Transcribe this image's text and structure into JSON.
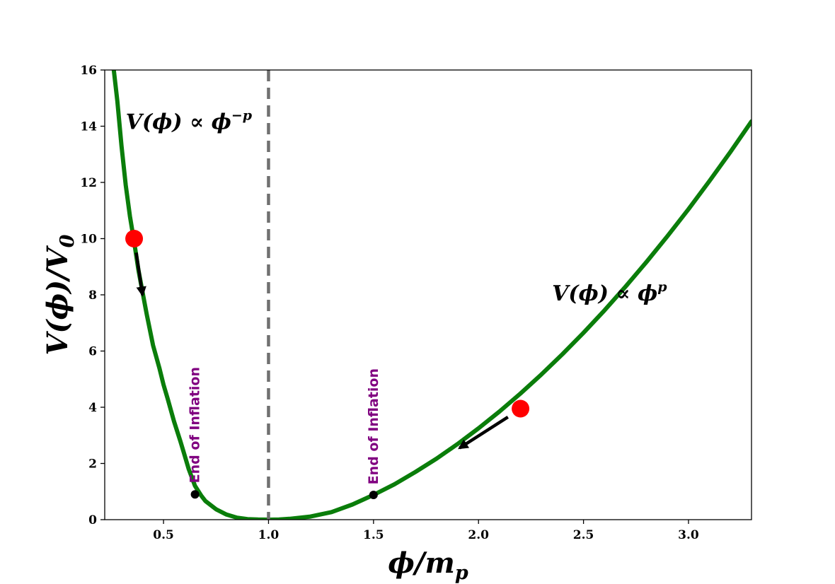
{
  "chart_data": {
    "type": "line",
    "title": "",
    "xlabel": "ϕ/m",
    "xlabel_sub": "p",
    "ylabel": "V(ϕ)/V",
    "ylabel_sub": "0",
    "xlim": [
      0.22,
      3.3
    ],
    "ylim": [
      0,
      16
    ],
    "x_ticks": [
      {
        "value": 0.5,
        "label": "0.5"
      },
      {
        "value": 1.0,
        "label": "1.0"
      },
      {
        "value": 1.5,
        "label": "1.5"
      },
      {
        "value": 2.0,
        "label": "2.0"
      },
      {
        "value": 2.5,
        "label": "2.5"
      },
      {
        "value": 3.0,
        "label": "3.0"
      }
    ],
    "y_ticks": [
      {
        "value": 0,
        "label": "0"
      },
      {
        "value": 2,
        "label": "2"
      },
      {
        "value": 4,
        "label": "4"
      },
      {
        "value": 6,
        "label": "6"
      },
      {
        "value": 8,
        "label": "8"
      },
      {
        "value": 10,
        "label": "10"
      },
      {
        "value": 12,
        "label": "12"
      },
      {
        "value": 14,
        "label": "14"
      },
      {
        "value": 16,
        "label": "16"
      }
    ],
    "grid": false,
    "curve": {
      "color": "#0a7d0a",
      "points": [
        [
          0.26,
          16.2
        ],
        [
          0.28,
          14.9
        ],
        [
          0.3,
          13.3
        ],
        [
          0.32,
          11.9
        ],
        [
          0.34,
          10.8
        ],
        [
          0.36,
          9.9
        ],
        [
          0.38,
          8.9
        ],
        [
          0.4,
          8.1
        ],
        [
          0.42,
          7.3
        ],
        [
          0.45,
          6.2
        ],
        [
          0.48,
          5.4
        ],
        [
          0.5,
          4.8
        ],
        [
          0.52,
          4.3
        ],
        [
          0.55,
          3.5
        ],
        [
          0.58,
          2.8
        ],
        [
          0.6,
          2.3
        ],
        [
          0.62,
          1.8
        ],
        [
          0.65,
          1.2
        ],
        [
          0.68,
          0.85
        ],
        [
          0.7,
          0.66
        ],
        [
          0.75,
          0.37
        ],
        [
          0.8,
          0.18
        ],
        [
          0.85,
          0.07
        ],
        [
          0.9,
          0.02
        ],
        [
          0.95,
          0.005
        ],
        [
          1.0,
          0.0
        ],
        [
          1.05,
          0.005
        ],
        [
          1.1,
          0.03
        ],
        [
          1.2,
          0.11
        ],
        [
          1.3,
          0.27
        ],
        [
          1.4,
          0.54
        ],
        [
          1.5,
          0.88
        ],
        [
          1.6,
          1.26
        ],
        [
          1.7,
          1.7
        ],
        [
          1.8,
          2.17
        ],
        [
          1.9,
          2.69
        ],
        [
          2.0,
          3.25
        ],
        [
          2.1,
          3.85
        ],
        [
          2.2,
          4.49
        ],
        [
          2.3,
          5.17
        ],
        [
          2.4,
          5.89
        ],
        [
          2.5,
          6.65
        ],
        [
          2.6,
          7.45
        ],
        [
          2.7,
          8.29
        ],
        [
          2.8,
          9.17
        ],
        [
          2.9,
          10.09
        ],
        [
          3.0,
          11.05
        ],
        [
          3.1,
          12.05
        ],
        [
          3.2,
          13.09
        ],
        [
          3.3,
          14.17
        ]
      ]
    },
    "vline": {
      "x": 1.0,
      "color": "#707070",
      "style": "dashed"
    },
    "markers": [
      {
        "x": 0.36,
        "y": 10.0,
        "color": "#ff0000",
        "size": "large"
      },
      {
        "x": 2.2,
        "y": 3.95,
        "color": "#ff0000",
        "size": "large"
      },
      {
        "x": 0.65,
        "y": 0.9,
        "color": "#000000",
        "size": "small"
      },
      {
        "x": 1.5,
        "y": 0.88,
        "color": "#000000",
        "size": "small"
      }
    ],
    "arrows": [
      {
        "from": [
          0.37,
          9.5
        ],
        "to": [
          0.4,
          8.0
        ]
      },
      {
        "from": [
          2.14,
          3.65
        ],
        "to": [
          1.91,
          2.55
        ]
      }
    ],
    "annotations": [
      {
        "text": "End of Inflation",
        "x": 0.65,
        "y": 1.3,
        "color": "#800080",
        "rotation": -90
      },
      {
        "text": "End of Inflation",
        "x": 1.5,
        "y": 1.25,
        "color": "#800080",
        "rotation": -90
      }
    ],
    "regime_labels": [
      {
        "base": "V(ϕ) ∝ ϕ",
        "sup": "−p",
        "x": 0.32,
        "y": 13.9
      },
      {
        "base": "V(ϕ) ∝ ϕ",
        "sup": "p",
        "x": 2.35,
        "y": 7.8
      }
    ]
  }
}
